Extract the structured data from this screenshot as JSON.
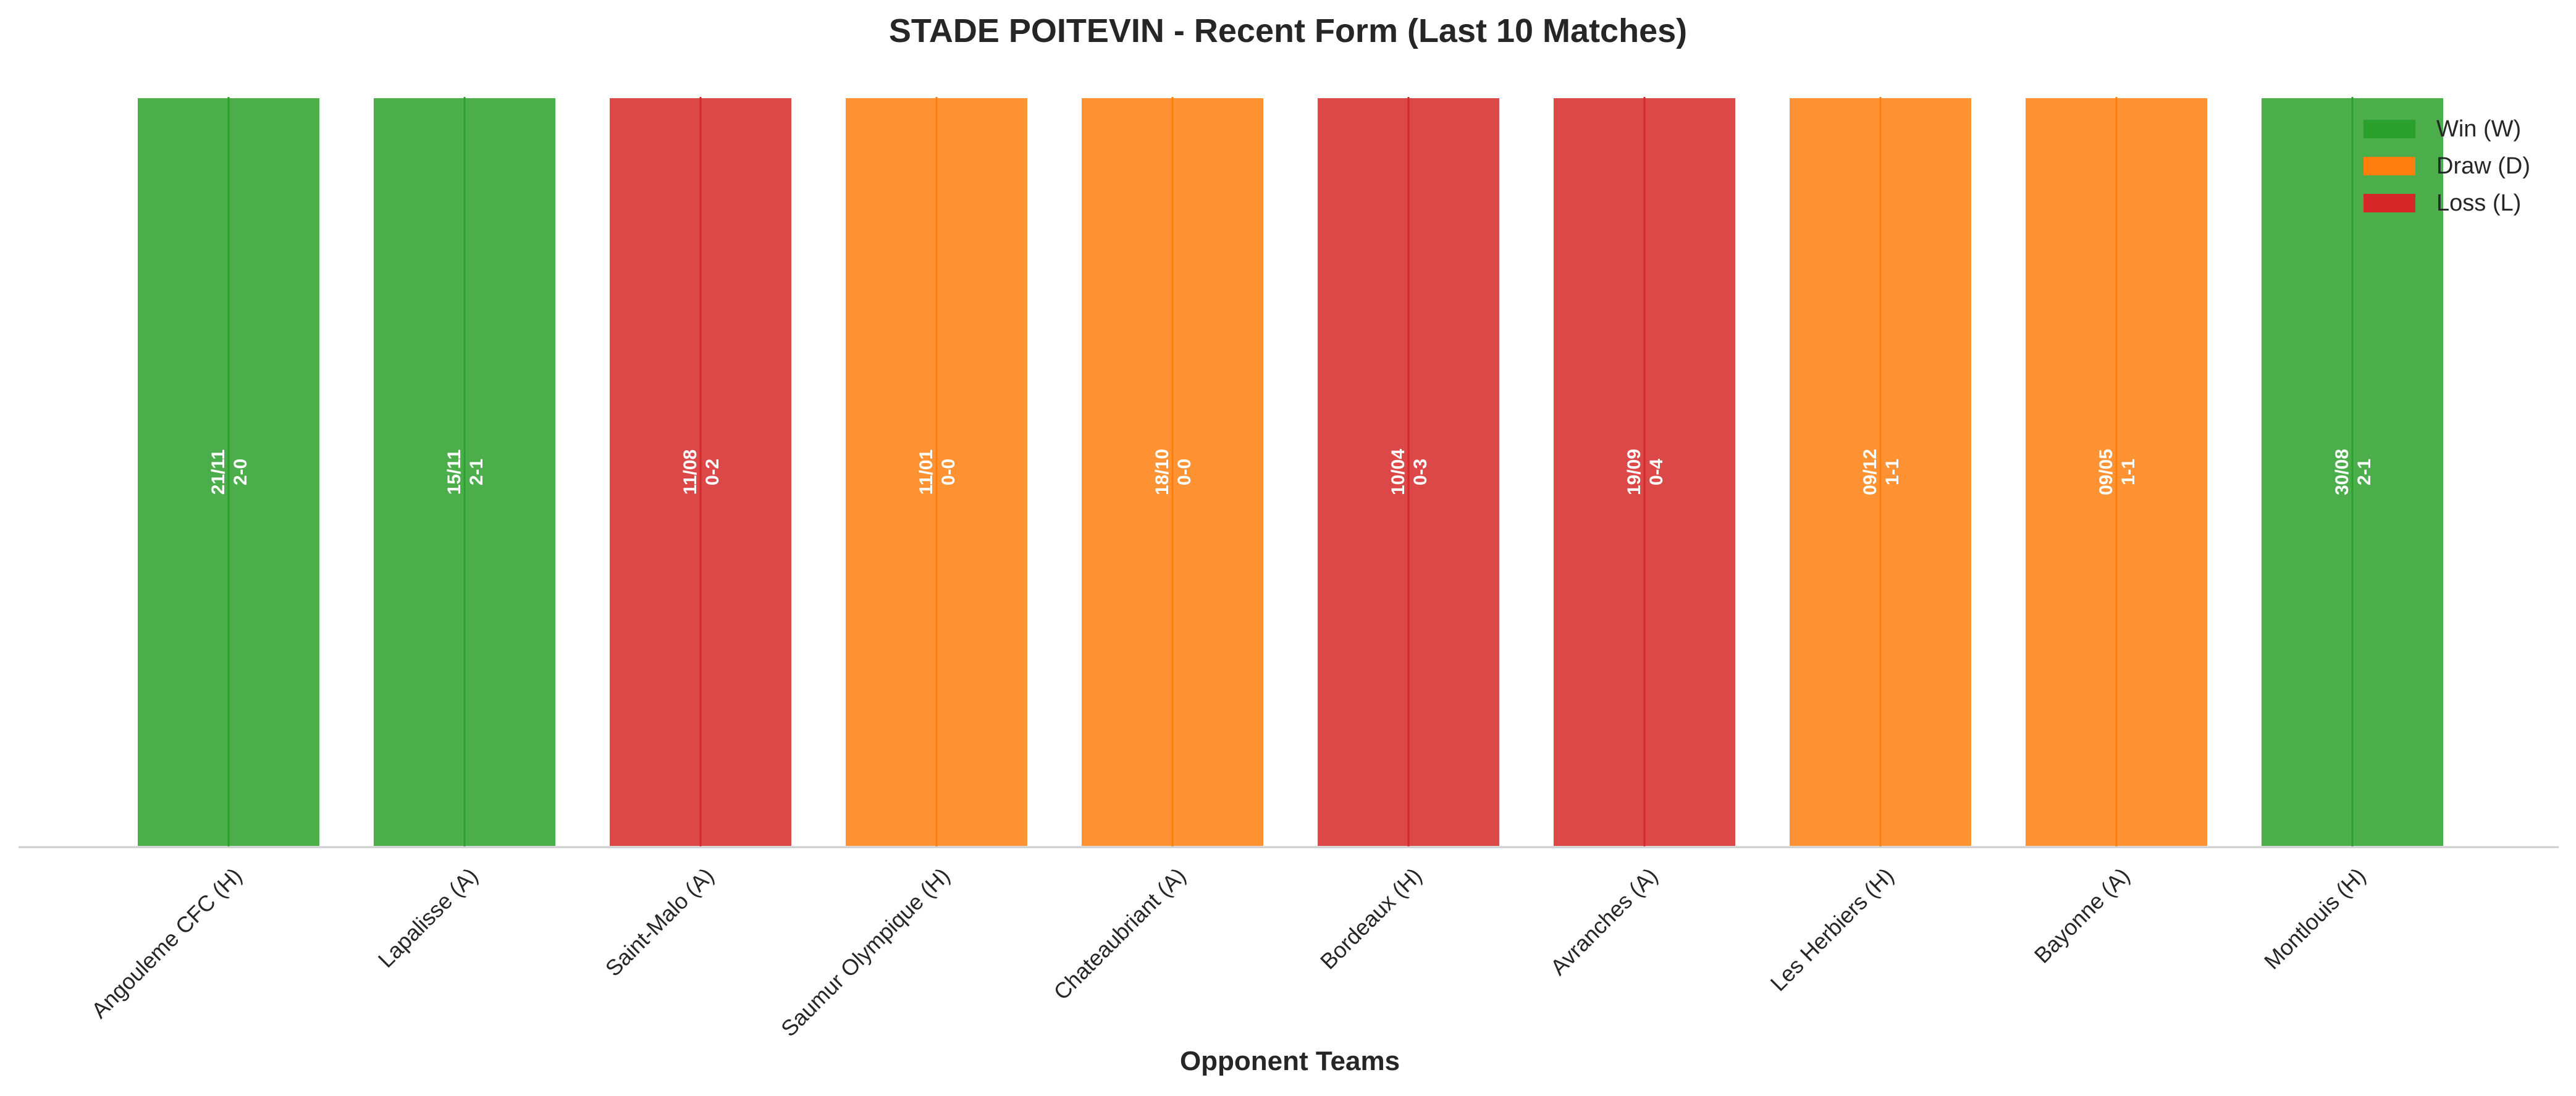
{
  "chart_data": {
    "type": "bar",
    "title": "STADE POITEVIN - Recent Form (Last 10 Matches)",
    "xlabel": "Opponent Teams",
    "ylabel": "",
    "categories": [
      "Angouleme CFC (H)",
      "Lapalisse (A)",
      "Saint-Malo (A)",
      "Saumur Olympique (H)",
      "Chateaubriant (A)",
      "Bordeaux (H)",
      "Avranches (A)",
      "Les Herbiers (H)",
      "Bayonne (A)",
      "Montlouis (H)"
    ],
    "values": [
      1,
      1,
      1,
      1,
      1,
      1,
      1,
      1,
      1,
      1
    ],
    "results": [
      "W",
      "W",
      "L",
      "D",
      "D",
      "L",
      "L",
      "D",
      "D",
      "W"
    ],
    "dates": [
      "21/11",
      "15/11",
      "11/08",
      "11/01",
      "18/10",
      "10/04",
      "19/09",
      "09/12",
      "09/05",
      "30/08"
    ],
    "scores": [
      "2-0",
      "2-1",
      "0-2",
      "0-0",
      "0-0",
      "0-3",
      "0-4",
      "1-1",
      "1-1",
      "2-1"
    ],
    "ylim": [
      0,
      1
    ],
    "grid": false,
    "legend": {
      "position": "top-right",
      "entries": [
        {
          "key": "W",
          "label": "Win (W)",
          "color": "#2ca02c"
        },
        {
          "key": "D",
          "label": "Draw (D)",
          "color": "#ff7f0e"
        },
        {
          "key": "L",
          "label": "Loss (L)",
          "color": "#d62728"
        }
      ]
    }
  }
}
